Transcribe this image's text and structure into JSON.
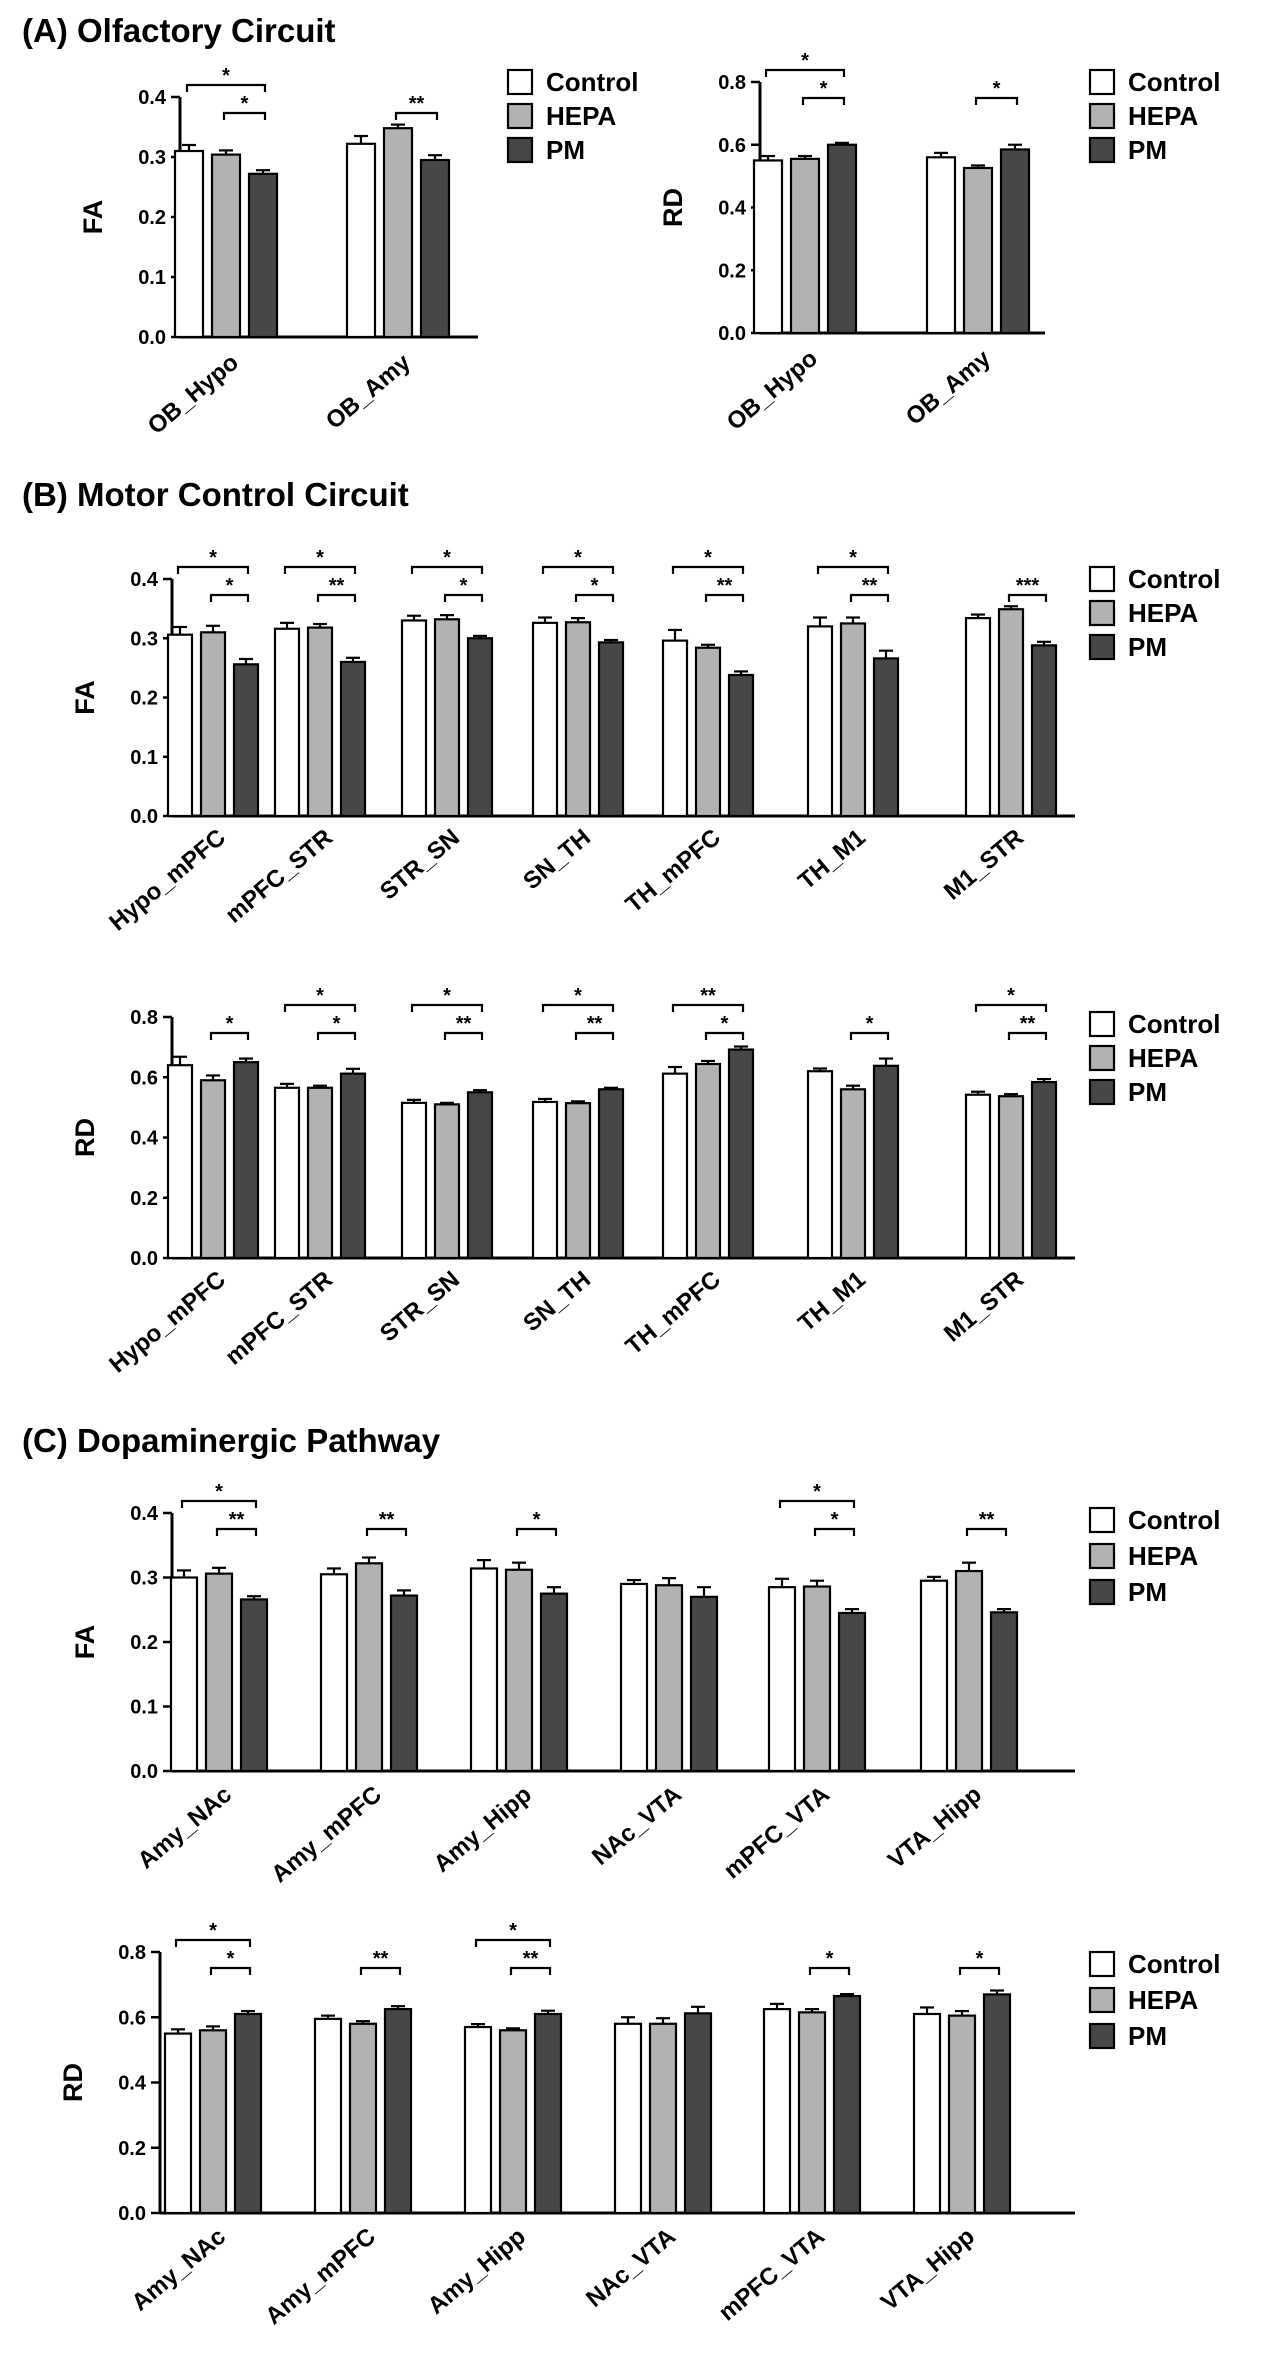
{
  "sections": {
    "a": "(A) Olfactory Circuit",
    "b": "(B) Motor Control Circuit",
    "c": "(C) Dopaminergic Pathway"
  },
  "colors": {
    "Control": "#ffffff",
    "HEPA": "#b2b2b2",
    "PM": "#474747",
    "stroke": "#000000"
  },
  "chart_data": [
    {
      "type": "bar",
      "section": "A",
      "ylabel": "FA",
      "ylim": [
        0,
        0.4
      ],
      "yticks": [
        0.0,
        0.1,
        0.2,
        0.3,
        0.4
      ],
      "ytick_labels": [
        "0.0",
        "0.1",
        "0.2",
        "0.3",
        "0.4"
      ],
      "legend": [
        "Control",
        "HEPA",
        "PM"
      ],
      "categories": [
        "OB_Hypo",
        "OB_Amy"
      ],
      "series": [
        {
          "name": "Control",
          "values": [
            0.31,
            0.322
          ],
          "errors": [
            0.01,
            0.013
          ]
        },
        {
          "name": "HEPA",
          "values": [
            0.304,
            0.348
          ],
          "errors": [
            0.007,
            0.006
          ]
        },
        {
          "name": "PM",
          "values": [
            0.272,
            0.295
          ],
          "errors": [
            0.006,
            0.008
          ]
        }
      ],
      "annotations": [
        {
          "category": 0,
          "from": "Control",
          "to": "PM",
          "label": "*"
        },
        {
          "category": 0,
          "from": "HEPA",
          "to": "PM",
          "label": "*"
        },
        {
          "category": 1,
          "from": "HEPA",
          "to": "PM",
          "label": "**"
        }
      ]
    },
    {
      "type": "bar",
      "section": "A",
      "ylabel": "RD",
      "ylim": [
        0,
        0.8
      ],
      "yticks": [
        0.0,
        0.2,
        0.4,
        0.6,
        0.8
      ],
      "ytick_labels": [
        "0.0",
        "0.2",
        "0.4",
        "0.6",
        "0.8"
      ],
      "legend": [
        "Control",
        "HEPA",
        "PM"
      ],
      "categories": [
        "OB_Hypo",
        "OB_Amy"
      ],
      "series": [
        {
          "name": "Control",
          "values": [
            0.55,
            0.56
          ],
          "errors": [
            0.014,
            0.014
          ]
        },
        {
          "name": "HEPA",
          "values": [
            0.555,
            0.526
          ],
          "errors": [
            0.009,
            0.008
          ]
        },
        {
          "name": "PM",
          "values": [
            0.6,
            0.585
          ],
          "errors": [
            0.006,
            0.015
          ]
        }
      ],
      "annotations": [
        {
          "category": 0,
          "from": "Control",
          "to": "PM",
          "label": "*"
        },
        {
          "category": 0,
          "from": "HEPA",
          "to": "PM",
          "label": "*"
        },
        {
          "category": 1,
          "from": "HEPA",
          "to": "PM",
          "label": "*"
        }
      ]
    },
    {
      "type": "bar",
      "section": "B",
      "ylabel": "FA",
      "ylim": [
        0,
        0.4
      ],
      "yticks": [
        0.0,
        0.1,
        0.2,
        0.3,
        0.4
      ],
      "ytick_labels": [
        "0.0",
        "0.1",
        "0.2",
        "0.3",
        "0.4"
      ],
      "legend": [
        "Control",
        "HEPA",
        "PM"
      ],
      "categories": [
        "Hypo_mPFC",
        "mPFC_STR",
        "STR_SN",
        "SN_TH",
        "TH_mPFC",
        "TH_M1",
        "M1_STR"
      ],
      "series": [
        {
          "name": "Control",
          "values": [
            0.306,
            0.316,
            0.33,
            0.326,
            0.296,
            0.32,
            0.334
          ],
          "errors": [
            0.013,
            0.01,
            0.008,
            0.009,
            0.018,
            0.015,
            0.006
          ]
        },
        {
          "name": "HEPA",
          "values": [
            0.31,
            0.318,
            0.332,
            0.327,
            0.284,
            0.325,
            0.349
          ],
          "errors": [
            0.011,
            0.006,
            0.007,
            0.007,
            0.005,
            0.01,
            0.005
          ]
        },
        {
          "name": "PM",
          "values": [
            0.256,
            0.26,
            0.3,
            0.293,
            0.238,
            0.266,
            0.288
          ],
          "errors": [
            0.009,
            0.007,
            0.004,
            0.004,
            0.006,
            0.013,
            0.006
          ]
        }
      ],
      "annotations": [
        {
          "category": 0,
          "from": "Control",
          "to": "PM",
          "label": "*"
        },
        {
          "category": 0,
          "from": "HEPA",
          "to": "PM",
          "label": "*"
        },
        {
          "category": 1,
          "from": "Control",
          "to": "PM",
          "label": "*"
        },
        {
          "category": 1,
          "from": "HEPA",
          "to": "PM",
          "label": "**"
        },
        {
          "category": 2,
          "from": "Control",
          "to": "PM",
          "label": "*"
        },
        {
          "category": 2,
          "from": "HEPA",
          "to": "PM",
          "label": "*"
        },
        {
          "category": 3,
          "from": "Control",
          "to": "PM",
          "label": "*"
        },
        {
          "category": 3,
          "from": "HEPA",
          "to": "PM",
          "label": "*"
        },
        {
          "category": 4,
          "from": "Control",
          "to": "PM",
          "label": "*"
        },
        {
          "category": 4,
          "from": "HEPA",
          "to": "PM",
          "label": "**"
        },
        {
          "category": 5,
          "from": "Control",
          "to": "PM",
          "label": "*"
        },
        {
          "category": 5,
          "from": "HEPA",
          "to": "PM",
          "label": "**"
        },
        {
          "category": 6,
          "from": "HEPA",
          "to": "PM",
          "label": "***"
        }
      ]
    },
    {
      "type": "bar",
      "section": "B",
      "ylabel": "RD",
      "ylim": [
        0,
        0.8
      ],
      "yticks": [
        0.0,
        0.2,
        0.4,
        0.6,
        0.8
      ],
      "ytick_labels": [
        "0.0",
        "0.2",
        "0.4",
        "0.6",
        "0.8"
      ],
      "legend": [
        "Control",
        "HEPA",
        "PM"
      ],
      "categories": [
        "Hypo_mPFC",
        "mPFC_STR",
        "STR_SN",
        "SN_TH",
        "TH_mPFC",
        "TH_M1",
        "M1_STR"
      ],
      "series": [
        {
          "name": "Control",
          "values": [
            0.64,
            0.565,
            0.515,
            0.518,
            0.612,
            0.62,
            0.542
          ],
          "errors": [
            0.028,
            0.013,
            0.01,
            0.01,
            0.022,
            0.009,
            0.01
          ]
        },
        {
          "name": "HEPA",
          "values": [
            0.59,
            0.565,
            0.51,
            0.514,
            0.644,
            0.56,
            0.537
          ],
          "errors": [
            0.016,
            0.007,
            0.005,
            0.006,
            0.01,
            0.012,
            0.007
          ]
        },
        {
          "name": "PM",
          "values": [
            0.65,
            0.612,
            0.55,
            0.56,
            0.692,
            0.638,
            0.584
          ],
          "errors": [
            0.012,
            0.016,
            0.007,
            0.005,
            0.01,
            0.024,
            0.01
          ]
        }
      ],
      "annotations": [
        {
          "category": 0,
          "from": "HEPA",
          "to": "PM",
          "label": "*"
        },
        {
          "category": 1,
          "from": "Control",
          "to": "PM",
          "label": "*"
        },
        {
          "category": 1,
          "from": "HEPA",
          "to": "PM",
          "label": "*"
        },
        {
          "category": 2,
          "from": "Control",
          "to": "PM",
          "label": "*"
        },
        {
          "category": 2,
          "from": "HEPA",
          "to": "PM",
          "label": "**"
        },
        {
          "category": 3,
          "from": "Control",
          "to": "PM",
          "label": "*"
        },
        {
          "category": 3,
          "from": "HEPA",
          "to": "PM",
          "label": "**"
        },
        {
          "category": 4,
          "from": "Control",
          "to": "PM",
          "label": "**"
        },
        {
          "category": 4,
          "from": "HEPA",
          "to": "PM",
          "label": "*"
        },
        {
          "category": 5,
          "from": "HEPA",
          "to": "PM",
          "label": "*"
        },
        {
          "category": 6,
          "from": "Control",
          "to": "PM",
          "label": "*"
        },
        {
          "category": 6,
          "from": "HEPA",
          "to": "PM",
          "label": "**"
        }
      ]
    },
    {
      "type": "bar",
      "section": "C",
      "ylabel": "FA",
      "ylim": [
        0,
        0.4
      ],
      "yticks": [
        0.0,
        0.1,
        0.2,
        0.3,
        0.4
      ],
      "ytick_labels": [
        "0.0",
        "0.1",
        "0.2",
        "0.3",
        "0.4"
      ],
      "legend": [
        "Control",
        "HEPA",
        "PM"
      ],
      "categories": [
        "Amy_NAc",
        "Amy_mPFC",
        "Amy_Hipp",
        "NAc_VTA",
        "mPFC_VTA",
        "VTA_Hipp"
      ],
      "series": [
        {
          "name": "Control",
          "values": [
            0.3,
            0.305,
            0.314,
            0.29,
            0.285,
            0.295
          ],
          "errors": [
            0.011,
            0.009,
            0.013,
            0.006,
            0.013,
            0.006
          ]
        },
        {
          "name": "HEPA",
          "values": [
            0.306,
            0.322,
            0.312,
            0.288,
            0.286,
            0.31
          ],
          "errors": [
            0.009,
            0.009,
            0.011,
            0.011,
            0.009,
            0.013
          ]
        },
        {
          "name": "PM",
          "values": [
            0.266,
            0.272,
            0.275,
            0.27,
            0.245,
            0.246
          ],
          "errors": [
            0.005,
            0.008,
            0.01,
            0.015,
            0.006,
            0.005
          ]
        }
      ],
      "annotations": [
        {
          "category": 0,
          "from": "Control",
          "to": "PM",
          "label": "*"
        },
        {
          "category": 0,
          "from": "HEPA",
          "to": "PM",
          "label": "**"
        },
        {
          "category": 1,
          "from": "HEPA",
          "to": "PM",
          "label": "**"
        },
        {
          "category": 2,
          "from": "HEPA",
          "to": "PM",
          "label": "*"
        },
        {
          "category": 4,
          "from": "Control",
          "to": "PM",
          "label": "*"
        },
        {
          "category": 4,
          "from": "HEPA",
          "to": "PM",
          "label": "*"
        },
        {
          "category": 5,
          "from": "HEPA",
          "to": "PM",
          "label": "**"
        }
      ]
    },
    {
      "type": "bar",
      "section": "C",
      "ylabel": "RD",
      "ylim": [
        0,
        0.8
      ],
      "yticks": [
        0.0,
        0.2,
        0.4,
        0.6,
        0.8
      ],
      "ytick_labels": [
        "0.0",
        "0.2",
        "0.4",
        "0.6",
        "0.8"
      ],
      "legend": [
        "Control",
        "HEPA",
        "PM"
      ],
      "categories": [
        "Amy_NAc",
        "Amy_mPFC",
        "Amy_Hipp",
        "NAc_VTA",
        "mPFC_VTA",
        "VTA_Hipp"
      ],
      "series": [
        {
          "name": "Control",
          "values": [
            0.55,
            0.595,
            0.57,
            0.58,
            0.625,
            0.61
          ],
          "errors": [
            0.013,
            0.01,
            0.009,
            0.02,
            0.016,
            0.02
          ]
        },
        {
          "name": "HEPA",
          "values": [
            0.56,
            0.58,
            0.56,
            0.58,
            0.615,
            0.605
          ],
          "errors": [
            0.012,
            0.008,
            0.006,
            0.017,
            0.01,
            0.014
          ]
        },
        {
          "name": "PM",
          "values": [
            0.61,
            0.625,
            0.61,
            0.612,
            0.665,
            0.67
          ],
          "errors": [
            0.009,
            0.009,
            0.01,
            0.02,
            0.006,
            0.012
          ]
        }
      ],
      "annotations": [
        {
          "category": 0,
          "from": "Control",
          "to": "PM",
          "label": "*"
        },
        {
          "category": 0,
          "from": "HEPA",
          "to": "PM",
          "label": "*"
        },
        {
          "category": 1,
          "from": "HEPA",
          "to": "PM",
          "label": "**"
        },
        {
          "category": 2,
          "from": "Control",
          "to": "PM",
          "label": "*"
        },
        {
          "category": 2,
          "from": "HEPA",
          "to": "PM",
          "label": "**"
        },
        {
          "category": 4,
          "from": "HEPA",
          "to": "PM",
          "label": "*"
        },
        {
          "category": 5,
          "from": "HEPA",
          "to": "PM",
          "label": "*"
        }
      ]
    }
  ]
}
